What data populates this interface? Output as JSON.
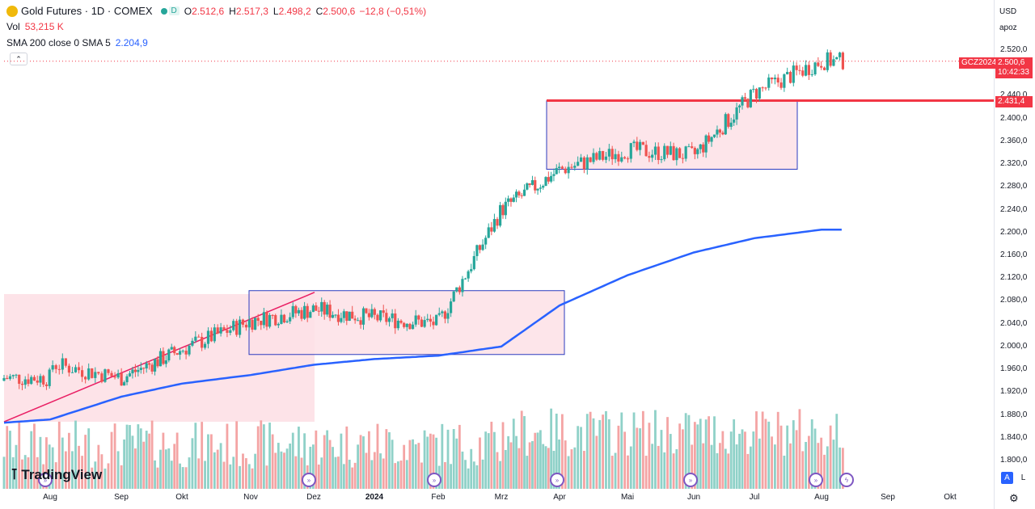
{
  "header": {
    "symbol": "Gold Futures · 1D · COMEX",
    "open_label": "O",
    "open": "2.512,6",
    "high_label": "H",
    "high": "2.517,3",
    "low_label": "L",
    "low": "2.498,2",
    "close_label": "C",
    "close": "2.500,6",
    "change": "−12,8 (−0,51%)",
    "status_badge": "D",
    "vol_label": "Vol",
    "vol_value": "53,215 K",
    "sma_label": "SMA 200 close 0 SMA 5",
    "sma_value": "2.204,9",
    "collapse_glyph": "⌃"
  },
  "price_scale": {
    "currency": "USD",
    "scale_mode": "apoz",
    "ticks": [
      "2.520,0",
      "2.480,0",
      "2.440,0",
      "2.400,0",
      "2.360,0",
      "2.320,0",
      "2.280,0",
      "2.240,0",
      "2.200,0",
      "2.160,0",
      "2.120,0",
      "2.080,0",
      "2.040,0",
      "2.000,0",
      "1.960,0",
      "1.920,0",
      "1.880,0",
      "1.840,0",
      "1.800,0"
    ],
    "symbol_tag": "GCZ2024",
    "last_price": "2.500,6",
    "countdown": "10:42:33",
    "level_tag": "2.431,4"
  },
  "time_scale": {
    "labels": [
      "Aug",
      "Sep",
      "Okt",
      "Nov",
      "Dez",
      "2024",
      "Feb",
      "Mrz",
      "Apr",
      "Mai",
      "Jun",
      "Jul",
      "Aug",
      "Sep",
      "Okt"
    ]
  },
  "branding": {
    "logo_text": "TradingView"
  },
  "controls": {
    "auto_label": "A",
    "log_label": "L"
  },
  "colors": {
    "up": "#26a69a",
    "down": "#ef5350",
    "sma": "#2962ff",
    "level": "#f23645",
    "box_fill": "#fde0e6",
    "box_border": "#2b3bbf"
  },
  "chart_data": {
    "type": "candlestick",
    "title": "Gold Futures · 1D · COMEX",
    "x": [
      "2023-08",
      "2023-09",
      "2023-10",
      "2023-11",
      "2023-12",
      "2024-01",
      "2024-02",
      "2024-03",
      "2024-04",
      "2024-05",
      "2024-06",
      "2024-07",
      "2024-08"
    ],
    "series": [
      {
        "name": "Gold Futures",
        "close": [
          1970,
          1945,
          1995,
          2045,
          2065,
          2050,
          2040,
          2240,
          2310,
          2345,
          2335,
          2445,
          2500.6
        ]
      },
      {
        "name": "SMA 200 close 0 SMA 5",
        "values": [
          1872,
          1912,
          1935,
          1950,
          1968,
          1978,
          1984,
          2000,
          2072,
          2125,
          2165,
          2190,
          2205
        ]
      }
    ],
    "volume_thousands": [
      80,
      95,
      110,
      105,
      100,
      85,
      90,
      120,
      130,
      115,
      100,
      110,
      140
    ],
    "annotations": {
      "horizontal_level": 2431.4,
      "last_price_line": 2500.6,
      "range_boxes": [
        {
          "from": "2023-11",
          "to": "2024-04",
          "low": 1986,
          "high": 2098
        },
        {
          "from": "2024-03",
          "to": "2024-07",
          "low": 2311,
          "high": 2431
        }
      ],
      "trend_line": {
        "from_price": 1868,
        "to_price": 2095
      }
    },
    "ylim": [
      1780,
      2540
    ],
    "xlabel": "",
    "ylabel": ""
  }
}
